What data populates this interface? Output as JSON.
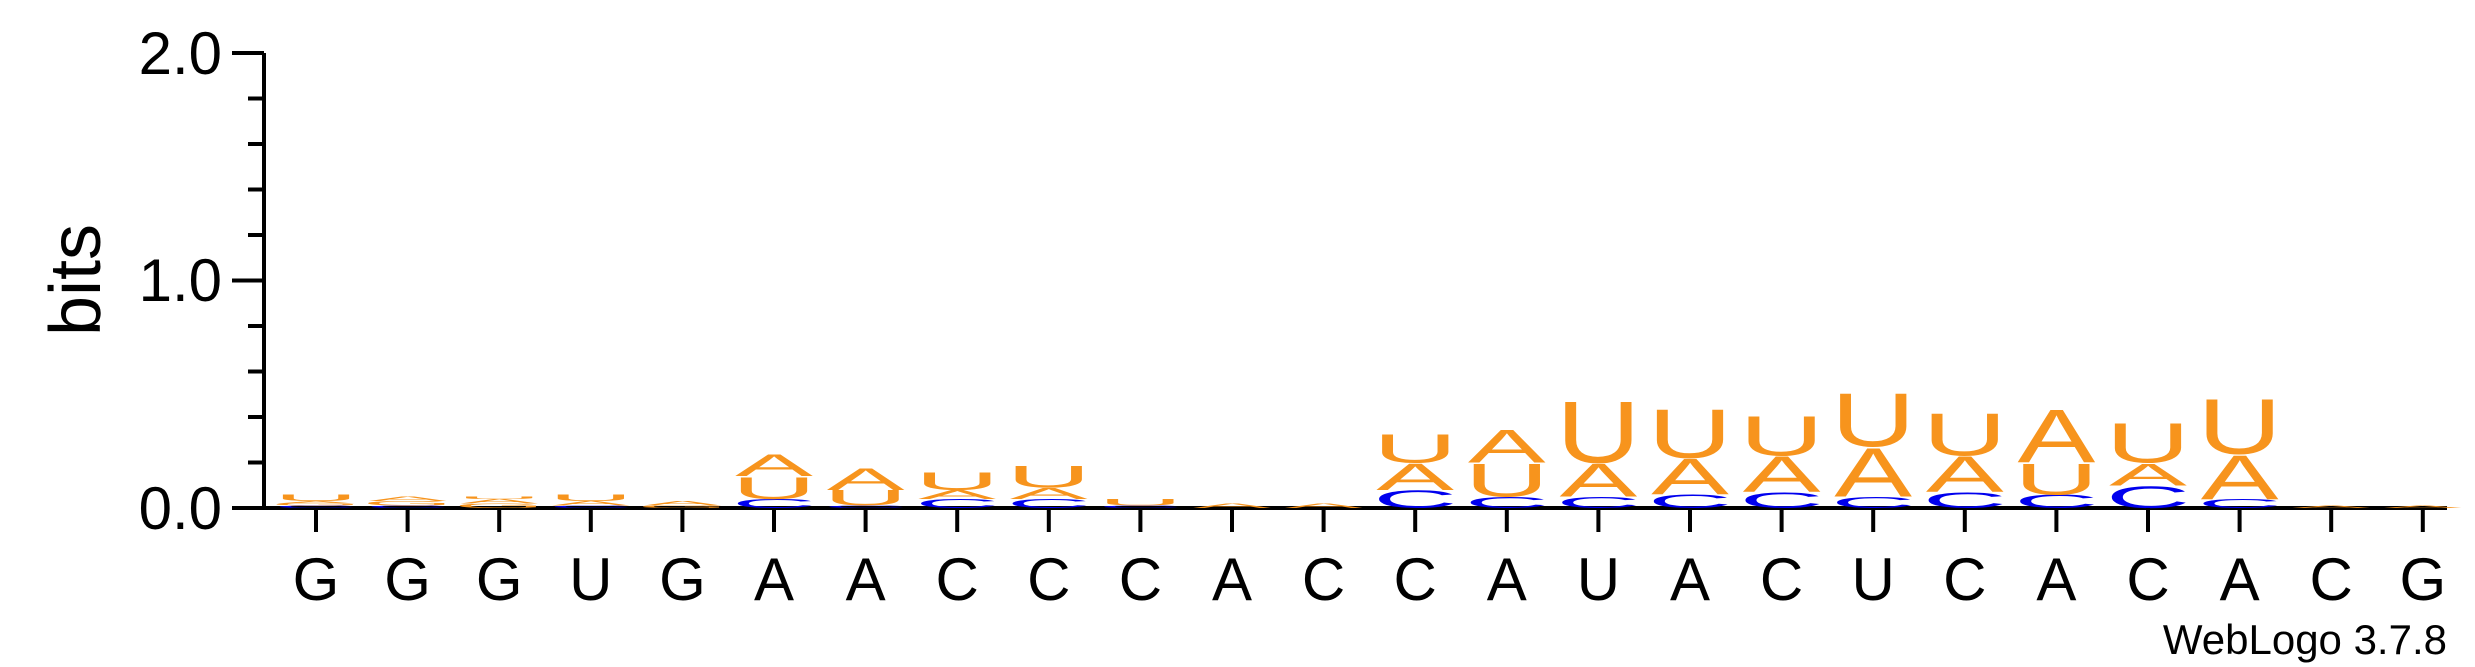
{
  "chart_data": {
    "type": "sequence-logo",
    "ylabel": "bits",
    "ylim": [
      0,
      2.0
    ],
    "yticks": [
      "0.0",
      "1.0",
      "2.0"
    ],
    "colors": {
      "A": "#f7941d",
      "U": "#f7941d",
      "G": "#f7941d",
      "C": "#0000ee"
    },
    "positions": [
      "G",
      "G",
      "G",
      "U",
      "G",
      "A",
      "A",
      "C",
      "C",
      "C",
      "A",
      "C",
      "C",
      "A",
      "U",
      "A",
      "C",
      "U",
      "C",
      "A",
      "C",
      "A",
      "C",
      "G"
    ],
    "stacks": [
      [
        {
          "l": "C",
          "v": 0.01
        },
        {
          "l": "G",
          "v": 0.01
        },
        {
          "l": "A",
          "v": 0.01
        },
        {
          "l": "U",
          "v": 0.03
        }
      ],
      [
        {
          "l": "C",
          "v": 0.01
        },
        {
          "l": "G",
          "v": 0.02
        },
        {
          "l": "A",
          "v": 0.02
        }
      ],
      [
        {
          "l": "G",
          "v": 0.02
        },
        {
          "l": "A",
          "v": 0.02
        },
        {
          "l": "U",
          "v": 0.01
        }
      ],
      [
        {
          "l": "C",
          "v": 0.01
        },
        {
          "l": "A",
          "v": 0.02
        },
        {
          "l": "U",
          "v": 0.03
        }
      ],
      [
        {
          "l": "G",
          "v": 0.01
        },
        {
          "l": "A",
          "v": 0.02
        }
      ],
      [
        {
          "l": "C",
          "v": 0.04
        },
        {
          "l": "U",
          "v": 0.1
        },
        {
          "l": "A",
          "v": 0.1
        }
      ],
      [
        {
          "l": "C",
          "v": 0.01
        },
        {
          "l": "U",
          "v": 0.07
        },
        {
          "l": "A",
          "v": 0.1
        }
      ],
      [
        {
          "l": "C",
          "v": 0.04
        },
        {
          "l": "A",
          "v": 0.04
        },
        {
          "l": "U",
          "v": 0.08
        }
      ],
      [
        {
          "l": "C",
          "v": 0.04
        },
        {
          "l": "A",
          "v": 0.05
        },
        {
          "l": "U",
          "v": 0.1
        }
      ],
      [
        {
          "l": "C",
          "v": 0.01
        },
        {
          "l": "U",
          "v": 0.03
        }
      ],
      [
        {
          "l": "A",
          "v": 0.02
        }
      ],
      [
        {
          "l": "A",
          "v": 0.02
        }
      ],
      [
        {
          "l": "C",
          "v": 0.08
        },
        {
          "l": "A",
          "v": 0.12
        },
        {
          "l": "U",
          "v": 0.13
        }
      ],
      [
        {
          "l": "C",
          "v": 0.05
        },
        {
          "l": "U",
          "v": 0.15
        },
        {
          "l": "A",
          "v": 0.15
        }
      ],
      [
        {
          "l": "C",
          "v": 0.05
        },
        {
          "l": "A",
          "v": 0.15
        },
        {
          "l": "U",
          "v": 0.28
        }
      ],
      [
        {
          "l": "C",
          "v": 0.06
        },
        {
          "l": "A",
          "v": 0.16
        },
        {
          "l": "U",
          "v": 0.22
        }
      ],
      [
        {
          "l": "C",
          "v": 0.07
        },
        {
          "l": "A",
          "v": 0.16
        },
        {
          "l": "U",
          "v": 0.18
        }
      ],
      [
        {
          "l": "C",
          "v": 0.05
        },
        {
          "l": "A",
          "v": 0.22
        },
        {
          "l": "U",
          "v": 0.24
        }
      ],
      [
        {
          "l": "C",
          "v": 0.07
        },
        {
          "l": "A",
          "v": 0.16
        },
        {
          "l": "U",
          "v": 0.19
        }
      ],
      [
        {
          "l": "C",
          "v": 0.06
        },
        {
          "l": "U",
          "v": 0.14
        },
        {
          "l": "A",
          "v": 0.24
        }
      ],
      [
        {
          "l": "C",
          "v": 0.1
        },
        {
          "l": "A",
          "v": 0.1
        },
        {
          "l": "U",
          "v": 0.18
        }
      ],
      [
        {
          "l": "C",
          "v": 0.04
        },
        {
          "l": "A",
          "v": 0.2
        },
        {
          "l": "U",
          "v": 0.25
        }
      ],
      [
        {
          "l": "A",
          "v": 0.01
        }
      ],
      [
        {
          "l": "A",
          "v": 0.01
        }
      ]
    ]
  },
  "credit": "WebLogo 3.7.8"
}
